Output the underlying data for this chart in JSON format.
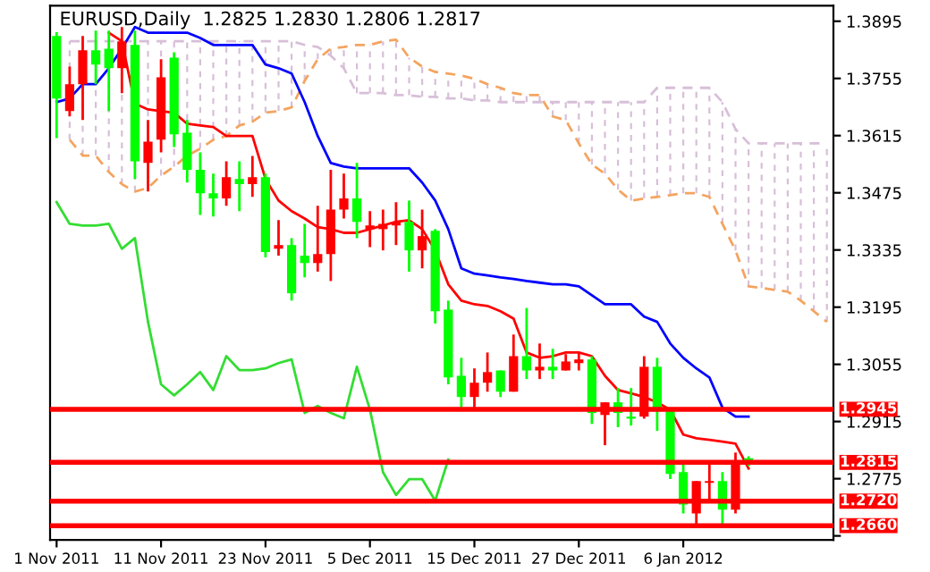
{
  "chart_data": {
    "type": "candlestick",
    "title": "EURUSD,Daily  1.2825 1.2830 1.2806 1.2817",
    "categories": [
      "1 Nov 2011",
      null,
      null,
      null,
      null,
      null,
      null,
      null,
      "11 Nov 2011",
      null,
      null,
      null,
      null,
      null,
      null,
      null,
      "23 Nov 2011",
      null,
      null,
      null,
      null,
      null,
      null,
      null,
      "5 Dec 2011",
      null,
      null,
      null,
      null,
      null,
      null,
      null,
      "15 Dec 2011",
      null,
      null,
      null,
      null,
      null,
      null,
      null,
      "27 Dec 2011",
      null,
      null,
      null,
      null,
      null,
      null,
      null,
      "6 Jan 2012",
      null,
      null,
      null,
      null,
      null,
      null,
      null,
      null,
      null,
      null,
      null
    ],
    "ohlc": [
      [
        1.3859,
        1.3868,
        1.3609,
        1.3706
      ],
      [
        1.3675,
        1.3784,
        1.3662,
        1.3741
      ],
      [
        1.3741,
        1.3859,
        1.3653,
        1.3824
      ],
      [
        1.3824,
        1.3872,
        1.3741,
        1.3789
      ],
      [
        1.3828,
        1.3872,
        1.3675,
        1.378
      ],
      [
        1.378,
        1.3881,
        1.3719,
        1.3846
      ],
      [
        1.3837,
        1.3872,
        1.3509,
        1.3552
      ],
      [
        1.3548,
        1.3653,
        1.3478,
        1.36
      ],
      [
        1.3605,
        1.3802,
        1.3574,
        1.3758
      ],
      [
        1.3806,
        1.3819,
        1.3587,
        1.3618
      ],
      [
        1.3622,
        1.3653,
        1.35,
        1.3531
      ],
      [
        1.3531,
        1.3574,
        1.3421,
        1.3474
      ],
      [
        1.3474,
        1.3522,
        1.3417,
        1.3461
      ],
      [
        1.3461,
        1.3552,
        1.3443,
        1.3513
      ],
      [
        1.3509,
        1.3552,
        1.343,
        1.3496
      ],
      [
        1.3496,
        1.3565,
        1.3465,
        1.3513
      ],
      [
        1.3513,
        1.3522,
        1.3317,
        1.333
      ],
      [
        1.3338,
        1.3408,
        1.3321,
        1.3347
      ],
      [
        1.3347,
        1.3364,
        1.3211,
        1.3229
      ],
      [
        1.3321,
        1.3399,
        1.3268,
        1.3303
      ],
      [
        1.3303,
        1.3443,
        1.3282,
        1.3325
      ],
      [
        1.3325,
        1.3531,
        1.3259,
        1.3434
      ],
      [
        1.3434,
        1.3522,
        1.3412,
        1.3461
      ],
      [
        1.3461,
        1.3548,
        1.3364,
        1.3404
      ],
      [
        1.3386,
        1.343,
        1.3342,
        1.3395
      ],
      [
        1.3386,
        1.3434,
        1.3334,
        1.3399
      ],
      [
        1.3395,
        1.3452,
        1.3347,
        1.3404
      ],
      [
        1.3404,
        1.3456,
        1.3282,
        1.3334
      ],
      [
        1.3334,
        1.3434,
        1.329,
        1.3369
      ],
      [
        1.3382,
        1.3386,
        1.3155,
        1.3185
      ],
      [
        1.3189,
        1.3211,
        1.3006,
        1.3023
      ],
      [
        1.3027,
        1.3071,
        1.294,
        1.2975
      ],
      [
        1.2975,
        1.3045,
        1.2944,
        1.301
      ],
      [
        1.301,
        1.3084,
        1.2988,
        1.3036
      ],
      [
        1.304,
        1.304,
        1.2975,
        1.2988
      ],
      [
        1.2988,
        1.3128,
        1.2988,
        1.3075
      ],
      [
        1.3075,
        1.3193,
        1.3019,
        1.304
      ],
      [
        1.304,
        1.3106,
        1.3019,
        1.3049
      ],
      [
        1.3049,
        1.3093,
        1.3019,
        1.304
      ],
      [
        1.304,
        1.308,
        1.304,
        1.3062
      ],
      [
        1.3058,
        1.3084,
        1.304,
        1.3067
      ],
      [
        1.3067,
        1.3075,
        1.2909,
        1.2936
      ],
      [
        1.2931,
        1.2962,
        1.2857,
        1.2962
      ],
      [
        1.2962,
        1.2997,
        1.2901,
        1.2936
      ],
      [
        1.2927,
        1.2997,
        1.2905,
        1.2922
      ],
      [
        1.2927,
        1.3075,
        1.2922,
        1.3049
      ],
      [
        1.3049,
        1.3071,
        1.2892,
        1.294
      ],
      [
        1.294,
        1.2949,
        1.2774,
        1.2787
      ],
      [
        1.2791,
        1.2809,
        1.269,
        1.2712
      ],
      [
        1.269,
        1.2769,
        1.266,
        1.2769
      ],
      [
        1.2765,
        1.2809,
        1.2721,
        1.2769
      ],
      [
        1.2769,
        1.2791,
        1.266,
        1.2699
      ],
      [
        1.2699,
        1.2839,
        1.269,
        1.2817
      ],
      [
        1.2825,
        1.283,
        1.2806,
        1.2817
      ],
      null,
      null,
      null,
      null,
      null,
      null
    ],
    "colors": [
      "#00ff00",
      "#ff0000",
      "#ff0000",
      "#00ff00",
      "#00ff00",
      "#ff0000",
      "#00ff00",
      "#ff0000",
      "#ff0000",
      "#00ff00",
      "#00ff00",
      "#00ff00",
      "#00ff00",
      "#ff0000",
      "#00ff00",
      "#ff0000",
      "#00ff00",
      "#ff0000",
      "#00ff00",
      "#00ff00",
      "#ff0000",
      "#ff0000",
      "#ff0000",
      "#00ff00",
      "#ff0000",
      "#ff0000",
      "#ff0000",
      "#00ff00",
      "#ff0000",
      "#00ff00",
      "#00ff00",
      "#00ff00",
      "#ff0000",
      "#ff0000",
      "#00ff00",
      "#ff0000",
      "#00ff00",
      "#ff0000",
      "#00ff00",
      "#ff0000",
      "#ff0000",
      "#00ff00",
      "#ff0000",
      "#00ff00",
      "#00ff00",
      "#ff0000",
      "#00ff00",
      "#00ff00",
      "#00ff00",
      "#ff0000",
      "#ff0000",
      "#00ff00",
      "#ff0000",
      "#00ff00",
      null,
      null,
      null,
      null,
      null,
      null
    ],
    "series": [
      {
        "type": "line",
        "color": "#f4a460",
        "line_style": "dashed",
        "values": [
          null,
          1.3605,
          1.3566,
          1.3566,
          1.3526,
          1.3496,
          1.3478,
          1.3487,
          1.3517,
          1.3539,
          1.3566,
          1.3583,
          1.3605,
          1.3614,
          1.364,
          1.3649,
          1.3671,
          1.3675,
          1.3684,
          1.3749,
          1.3802,
          1.3828,
          1.3832,
          1.3837,
          1.3837,
          1.3846,
          1.385,
          1.3806,
          1.3784,
          1.3771,
          1.3767,
          1.3762,
          1.3754,
          1.3741,
          1.3732,
          1.3719,
          1.3714,
          1.3714,
          1.3662,
          1.3653,
          1.3596,
          1.3544,
          1.3522,
          1.3483,
          1.3456,
          1.3461,
          1.3465,
          1.3469,
          1.3474,
          1.3474,
          1.3465,
          1.3399,
          1.3334,
          1.3246,
          1.3242,
          1.3237,
          1.3233,
          1.3211,
          1.3185,
          1.3159
        ]
      },
      {
        "type": "line",
        "color": "#d8bfd8",
        "line_style": "dashed",
        "values": [
          null,
          1.3846,
          1.3846,
          1.3846,
          1.3846,
          1.3846,
          1.3846,
          1.3846,
          1.3846,
          1.3846,
          1.3846,
          1.3846,
          1.3846,
          1.3846,
          1.3846,
          1.3846,
          1.3846,
          1.3846,
          1.3846,
          1.3837,
          1.3832,
          1.3811,
          1.378,
          1.3719,
          1.3719,
          1.3719,
          1.3714,
          1.3714,
          1.371,
          1.371,
          1.3706,
          1.3706,
          1.3701,
          1.3701,
          1.3697,
          1.3697,
          1.3697,
          1.3697,
          1.3697,
          1.3697,
          1.3697,
          1.3697,
          1.3697,
          1.3697,
          1.3697,
          1.3697,
          1.3732,
          1.3732,
          1.3732,
          1.3732,
          1.3732,
          1.3697,
          1.3631,
          1.3596,
          1.3596,
          1.3596,
          1.3596,
          1.3596,
          1.3596,
          1.3596
        ]
      },
      {
        "type": "line",
        "color": "#33dd33",
        "values": [
          1.3452,
          1.3399,
          1.3395,
          1.3395,
          1.3399,
          1.3338,
          1.3364,
          1.3159,
          1.3006,
          1.2979,
          1.3006,
          1.3036,
          1.2992,
          1.3075,
          1.3041,
          1.3041,
          1.3045,
          1.3058,
          1.3067,
          1.2936,
          1.2953,
          1.2936,
          1.2923,
          1.3049,
          1.2944,
          1.2791,
          1.2735,
          1.2774,
          1.2774,
          1.2721,
          1.2822,
          null,
          null,
          null,
          null,
          null,
          null,
          null,
          null,
          null,
          null,
          null,
          null,
          null,
          null,
          null,
          null,
          null,
          null,
          null,
          null,
          null,
          null,
          null,
          null,
          null,
          null,
          null,
          null,
          null
        ]
      },
      {
        "type": "line",
        "color": "#0000ff",
        "values": [
          1.3697,
          1.3706,
          1.3741,
          1.3741,
          1.378,
          1.3828,
          1.3881,
          1.3867,
          1.3867,
          1.3867,
          1.3867,
          1.3854,
          1.3837,
          1.3837,
          1.3837,
          1.3837,
          1.3789,
          1.378,
          1.3767,
          1.3697,
          1.3614,
          1.3548,
          1.3539,
          1.3535,
          1.3535,
          1.3535,
          1.3535,
          1.3535,
          1.35,
          1.3456,
          1.3386,
          1.329,
          1.3277,
          1.3273,
          1.3268,
          1.3264,
          1.3259,
          1.3255,
          1.3251,
          1.3251,
          1.3246,
          1.3224,
          1.3202,
          1.3202,
          1.3202,
          1.3172,
          1.3159,
          1.3106,
          1.3071,
          1.3045,
          1.3023,
          1.2949,
          1.2927,
          1.2927,
          null,
          null,
          null,
          null,
          null,
          null
        ]
      },
      {
        "type": "line",
        "color": "#ff0000",
        "values": [
          null,
          null,
          null,
          null,
          1.3867,
          1.3846,
          1.3693,
          1.3679,
          1.3675,
          1.3671,
          1.3644,
          1.364,
          1.3636,
          1.3614,
          1.3614,
          1.3614,
          1.3509,
          1.3456,
          1.343,
          1.3412,
          1.3391,
          1.3386,
          1.3377,
          1.3377,
          1.3386,
          1.3395,
          1.3404,
          1.3408,
          1.3386,
          1.3334,
          1.3251,
          1.3211,
          1.3202,
          1.3198,
          1.3185,
          1.3167,
          1.3084,
          1.3071,
          1.3075,
          1.3084,
          1.3084,
          1.3075,
          1.3027,
          1.2992,
          1.2984,
          1.2975,
          1.2962,
          1.2944,
          1.2883,
          1.2874,
          1.287,
          1.2866,
          1.2861,
          1.28,
          null,
          null,
          null,
          null,
          null,
          null
        ]
      }
    ],
    "ylim": [
      1.2625,
      1.3933
    ],
    "yticks": [
      1.3895,
      1.3755,
      1.3615,
      1.3475,
      1.3335,
      1.3195,
      1.3055,
      1.2915,
      1.2775,
      {
        "value": 1.2635,
        "label": null
      }
    ],
    "ref_lines": [
      {
        "axis": "y",
        "value": 1.2945,
        "label": "1.2945",
        "color": "#ff0000"
      },
      {
        "axis": "y",
        "value": 1.2815,
        "label": "1.2815",
        "color": "#ff0000"
      },
      {
        "axis": "y",
        "value": 1.272,
        "label": "1.2720",
        "color": "#ff0000"
      },
      {
        "axis": "y",
        "value": 1.266,
        "label": "1.2660",
        "color": "#ff0000"
      }
    ]
  }
}
